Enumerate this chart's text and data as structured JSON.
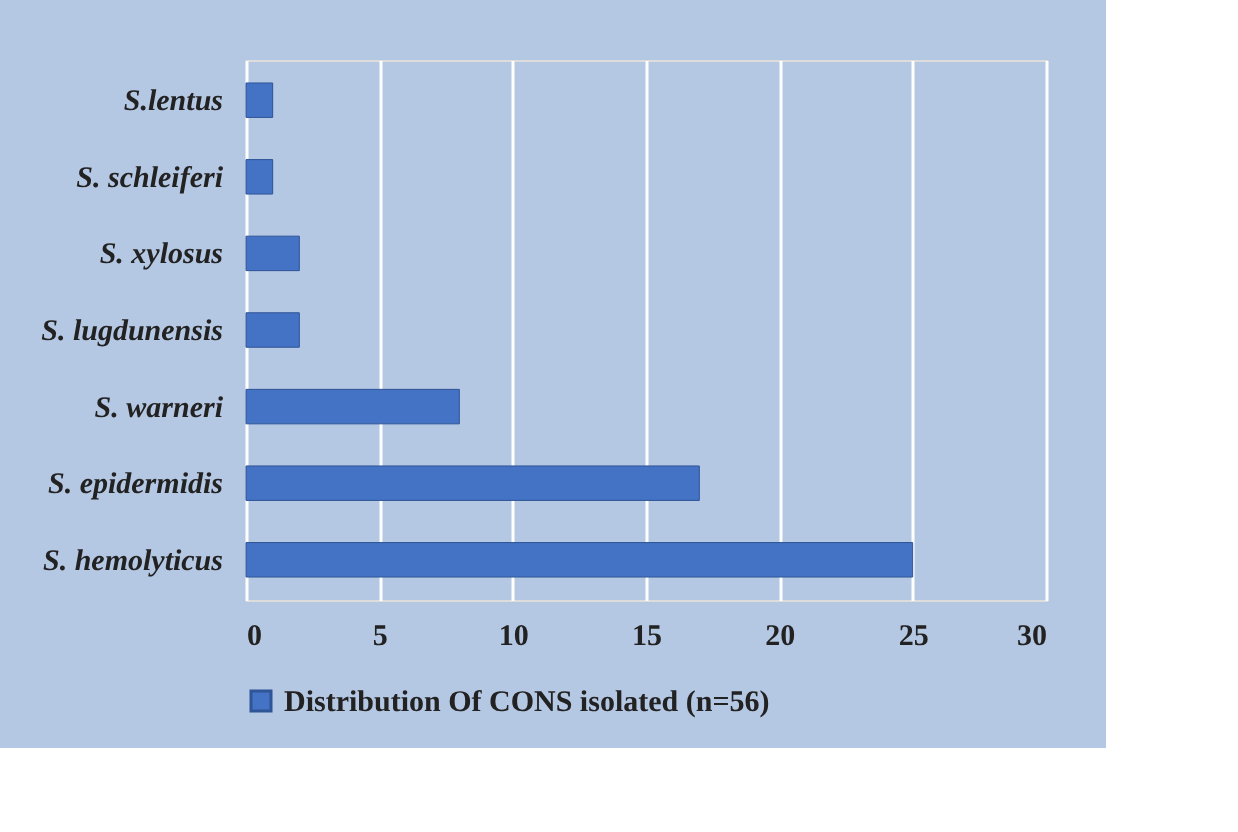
{
  "chart_data": {
    "type": "bar",
    "orientation": "horizontal",
    "categories": [
      "S.lentus",
      "S. schleiferi",
      "S. xylosus",
      "S. lugdunensis",
      "S. warneri",
      "S. epidermidis",
      "S. hemolyticus"
    ],
    "series": [
      {
        "name": "Distribution Of CONS isolated (n=56)",
        "color": "#4472c4",
        "values": [
          1,
          1,
          2,
          2,
          8,
          17,
          25
        ]
      }
    ],
    "xlim": [
      0,
      30
    ],
    "xticks": [
      0,
      5,
      10,
      15,
      20,
      25,
      30
    ],
    "grid": "x",
    "legend": "bottom"
  }
}
